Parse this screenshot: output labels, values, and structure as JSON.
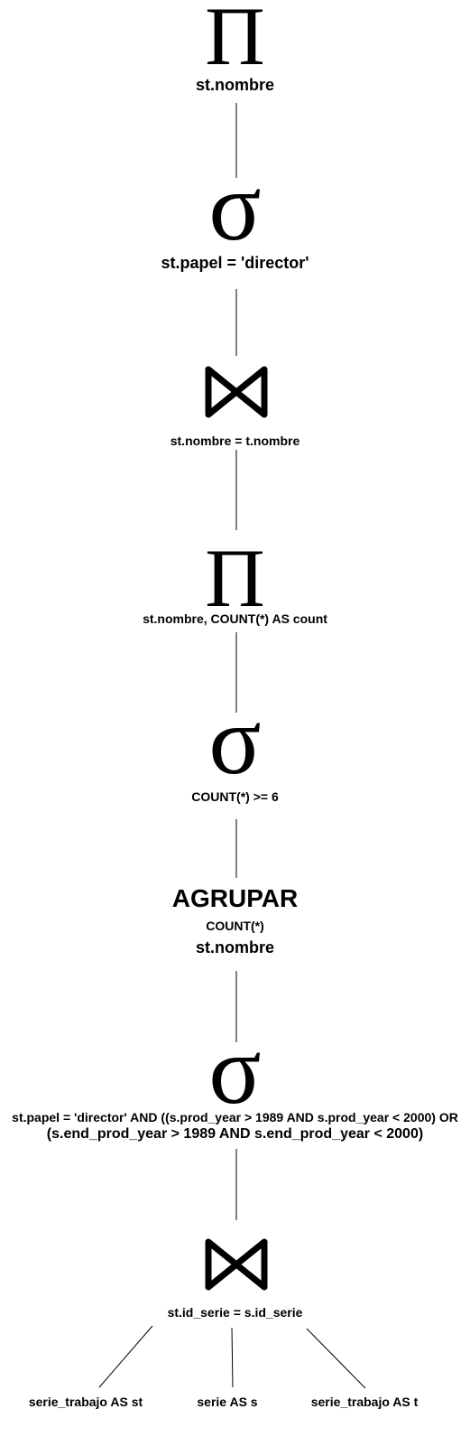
{
  "nodes": {
    "project_top": {
      "symbol": "Π",
      "label": "st.nombre"
    },
    "select_director": {
      "symbol": "σ",
      "label": "st.papel = 'director'"
    },
    "join_nombre": {
      "label": "st.nombre = t.nombre"
    },
    "project_count": {
      "symbol": "Π",
      "label": "st.nombre, COUNT(*) AS count"
    },
    "select_count": {
      "symbol": "σ",
      "label": "COUNT(*) >= 6"
    },
    "group": {
      "title": "AGRUPAR",
      "aggregate": "COUNT(*)",
      "attribute": "st.nombre"
    },
    "select_years": {
      "symbol": "σ",
      "label_line1": "st.papel = 'director' AND ((s.prod_year > 1989 AND s.prod_year < 2000) OR",
      "label_line2": "(s.end_prod_year > 1989 AND s.end_prod_year < 2000)"
    },
    "join_serie": {
      "label": "st.id_serie = s.id_serie"
    },
    "leaves": [
      {
        "label": "serie_trabajo AS st"
      },
      {
        "label": "serie AS s"
      },
      {
        "label": "serie_trabajo AS t"
      }
    ]
  }
}
